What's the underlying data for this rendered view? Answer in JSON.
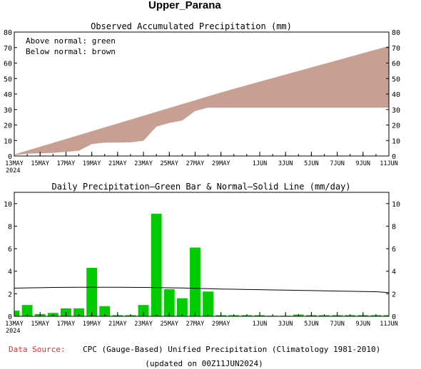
{
  "header": {
    "region": "Upper_Parana"
  },
  "chart_data": [
    {
      "type": "area",
      "title": "Observed Accumulated Precipitation (mm)",
      "annotations": [
        "Above normal: green",
        "Below normal: brown"
      ],
      "colors": {
        "above_normal": "#00cc00",
        "below_normal": "#c7a093"
      },
      "ylim": [
        0,
        80
      ],
      "yticks": [
        0,
        10,
        20,
        30,
        40,
        50,
        60,
        70,
        80
      ],
      "x_tick_labels": [
        "13MAY",
        "15MAY",
        "17MAY",
        "19MAY",
        "21MAY",
        "23MAY",
        "25MAY",
        "27MAY",
        "29MAY",
        "1JUN",
        "3JUN",
        "5JUN",
        "7JUN",
        "9JUN",
        "11JUN"
      ],
      "x_tick_days": [
        0,
        2,
        4,
        6,
        8,
        10,
        12,
        14,
        16,
        19,
        21,
        23,
        25,
        27,
        29
      ],
      "year_label": "2024",
      "x_days": [
        0,
        1,
        2,
        3,
        4,
        5,
        6,
        7,
        8,
        9,
        10,
        11,
        12,
        13,
        14,
        15,
        16,
        17,
        18,
        19,
        20,
        21,
        22,
        23,
        24,
        25,
        26,
        27,
        28,
        29
      ],
      "series": [
        {
          "name": "Observed",
          "values": [
            0.5,
            1.5,
            1.7,
            2.0,
            2.7,
            3.4,
            7.7,
            8.6,
            8.7,
            8.8,
            9.8,
            18.9,
            21.3,
            22.9,
            29.0,
            31.2,
            31.2,
            31.2,
            31.2,
            31.2,
            31.2,
            31.2,
            31.2,
            31.2,
            31.2,
            31.2,
            31.2,
            31.2,
            31.2,
            31.2
          ]
        },
        {
          "name": "Normal",
          "values": [
            1.0,
            3.5,
            6.0,
            8.5,
            11.0,
            13.5,
            16.0,
            18.5,
            21.0,
            23.5,
            26.0,
            28.5,
            31.0,
            33.5,
            36.0,
            38.5,
            41.0,
            43.4,
            45.7,
            48.0,
            50.3,
            52.6,
            54.9,
            57.2,
            59.5,
            61.8,
            64.1,
            66.4,
            68.7,
            71.0
          ]
        }
      ]
    },
    {
      "type": "bar",
      "title": "Daily Precipitation–Green Bar & Normal–Solid Line (mm/day)",
      "ylim": [
        0,
        11
      ],
      "yticks": [
        0,
        2,
        4,
        6,
        8,
        10
      ],
      "bar_color": "#00cc00",
      "x_tick_labels": [
        "13MAY",
        "15MAY",
        "17MAY",
        "19MAY",
        "21MAY",
        "23MAY",
        "25MAY",
        "27MAY",
        "29MAY",
        "1JUN",
        "3JUN",
        "5JUN",
        "7JUN",
        "9JUN",
        "11JUN"
      ],
      "x_tick_days": [
        0,
        2,
        4,
        6,
        8,
        10,
        12,
        14,
        16,
        19,
        21,
        23,
        25,
        27,
        29
      ],
      "year_label": "2024",
      "x_days": [
        0,
        1,
        2,
        3,
        4,
        5,
        6,
        7,
        8,
        9,
        10,
        11,
        12,
        13,
        14,
        15,
        16,
        17,
        18,
        19,
        20,
        21,
        22,
        23,
        24,
        25,
        26,
        27,
        28,
        29
      ],
      "series": [
        {
          "name": "Daily Precipitation",
          "values": [
            0.5,
            1.0,
            0.2,
            0.3,
            0.7,
            0.7,
            4.3,
            0.9,
            0.1,
            0.1,
            1.0,
            9.1,
            2.4,
            1.6,
            6.1,
            2.2,
            0.1,
            0.1,
            0.1,
            0.1,
            0.05,
            0.05,
            0.15,
            0.1,
            0.1,
            0.1,
            0.1,
            0.1,
            0.1,
            0.1
          ]
        },
        {
          "name": "Normal",
          "values": [
            2.5,
            2.52,
            2.54,
            2.56,
            2.57,
            2.58,
            2.58,
            2.58,
            2.58,
            2.57,
            2.56,
            2.55,
            2.53,
            2.51,
            2.48,
            2.45,
            2.42,
            2.4,
            2.38,
            2.36,
            2.34,
            2.32,
            2.3,
            2.28,
            2.26,
            2.24,
            2.22,
            2.2,
            2.18,
            2.1
          ]
        }
      ]
    }
  ],
  "footer": {
    "source_label": "Data Source:",
    "source_text": "CPC (Gauge-Based) Unified Precipitation (Climatology 1981-2010)",
    "updated": "(updated on 00Z11JUN2024)"
  }
}
